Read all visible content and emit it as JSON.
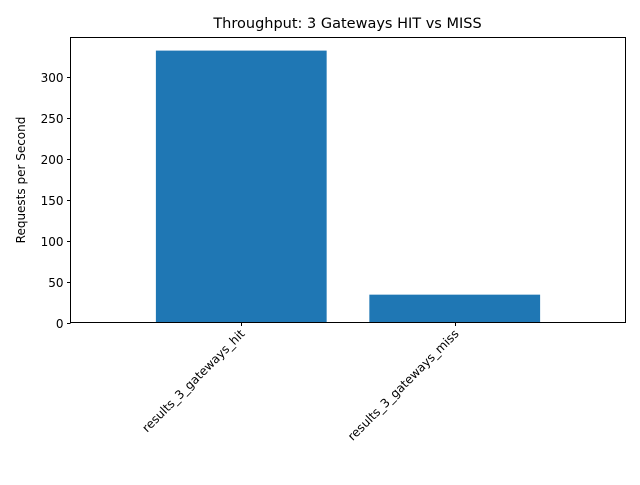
{
  "chart_data": {
    "type": "bar",
    "title": "Throughput: 3 Gateways HIT vs MISS",
    "xlabel": "",
    "ylabel": "Requests per Second",
    "categories": [
      "results_3_gateways_hit",
      "results_3_gateways_miss"
    ],
    "values": [
      332,
      34
    ],
    "ylim": [
      0,
      348
    ],
    "yticks": [
      0,
      50,
      100,
      150,
      200,
      250,
      300
    ],
    "grid": false,
    "bar_color": "#1f77b4"
  }
}
